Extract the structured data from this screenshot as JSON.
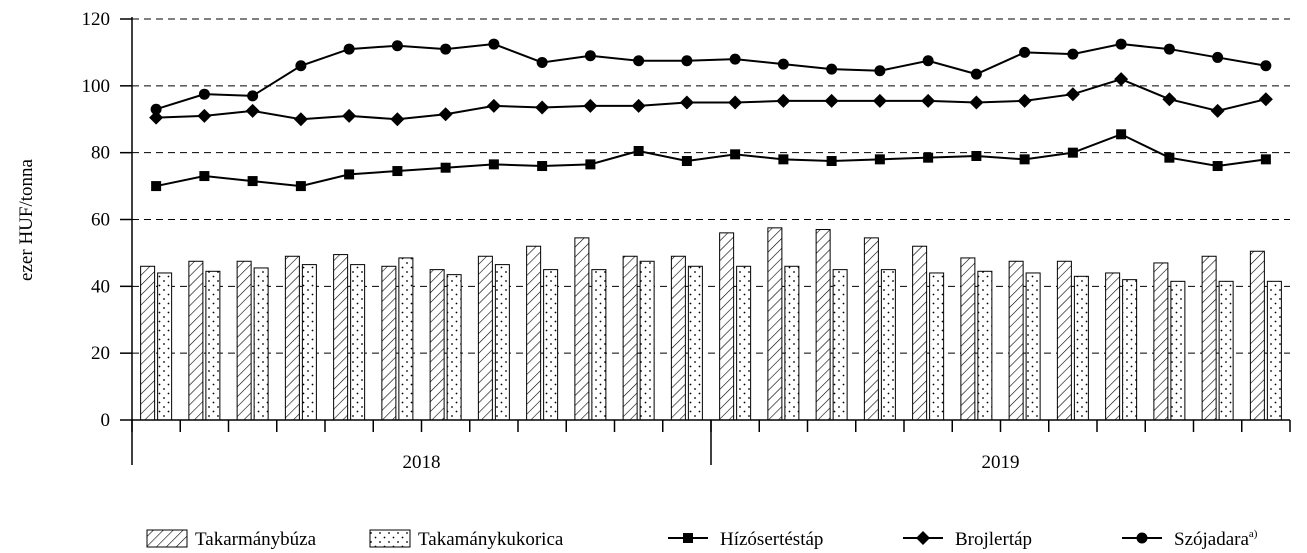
{
  "chart_data": {
    "type": "bar",
    "ylabel": "ezer HUF/tonna",
    "ylim": [
      0,
      120
    ],
    "yticks": [
      "0",
      "20",
      "40",
      "60",
      "80",
      "100",
      "120"
    ],
    "grid": "horizontal-dashed",
    "year_labels": [
      {
        "label": "2018",
        "months": 12
      },
      {
        "label": "2019",
        "months": 12
      }
    ],
    "legend_position": "bottom",
    "bar_series": [
      {
        "name": "Takarmánybúza",
        "pattern": "diagonal-hatch",
        "values": [
          46,
          47.5,
          47.5,
          49,
          49.5,
          46,
          45,
          49,
          52,
          54.5,
          49,
          49,
          56,
          57.5,
          57,
          54.5,
          52,
          48.5,
          47.5,
          47.5,
          44,
          47,
          49,
          50.5
        ]
      },
      {
        "name": "Takamánykukorica",
        "pattern": "dotted",
        "values": [
          44,
          44.5,
          45.5,
          46.5,
          46.5,
          48.5,
          43.5,
          46.5,
          45,
          45,
          47.5,
          46,
          46,
          46,
          45,
          45,
          44,
          44.5,
          44,
          43,
          42,
          41.5,
          41.5,
          41.5
        ]
      }
    ],
    "line_series": [
      {
        "name": "Hízósertéstáp",
        "marker": "square",
        "values": [
          70,
          73,
          71.5,
          70,
          73.5,
          74.5,
          75.5,
          76.5,
          76,
          76.5,
          80.5,
          77.5,
          79.5,
          78,
          77.5,
          78,
          78.5,
          79,
          78,
          80,
          85.5,
          78.5,
          76,
          78
        ]
      },
      {
        "name": "Brojlertáp",
        "marker": "diamond",
        "values": [
          90.5,
          91,
          92.5,
          90,
          91,
          90,
          91.5,
          94,
          93.5,
          94,
          94,
          95,
          95,
          95.5,
          95.5,
          95.5,
          95.5,
          95,
          95.5,
          97.5,
          102,
          96,
          92.5,
          96
        ]
      },
      {
        "name": "Szójadara",
        "name_superscript": "a)",
        "marker": "circle",
        "values": [
          93,
          97.5,
          97,
          106,
          111,
          112,
          111,
          112.5,
          107,
          109,
          107.5,
          107.5,
          108,
          106.5,
          105,
          104.5,
          107.5,
          103.5,
          110,
          109.5,
          112.5,
          111,
          108.5,
          106
        ]
      }
    ]
  }
}
